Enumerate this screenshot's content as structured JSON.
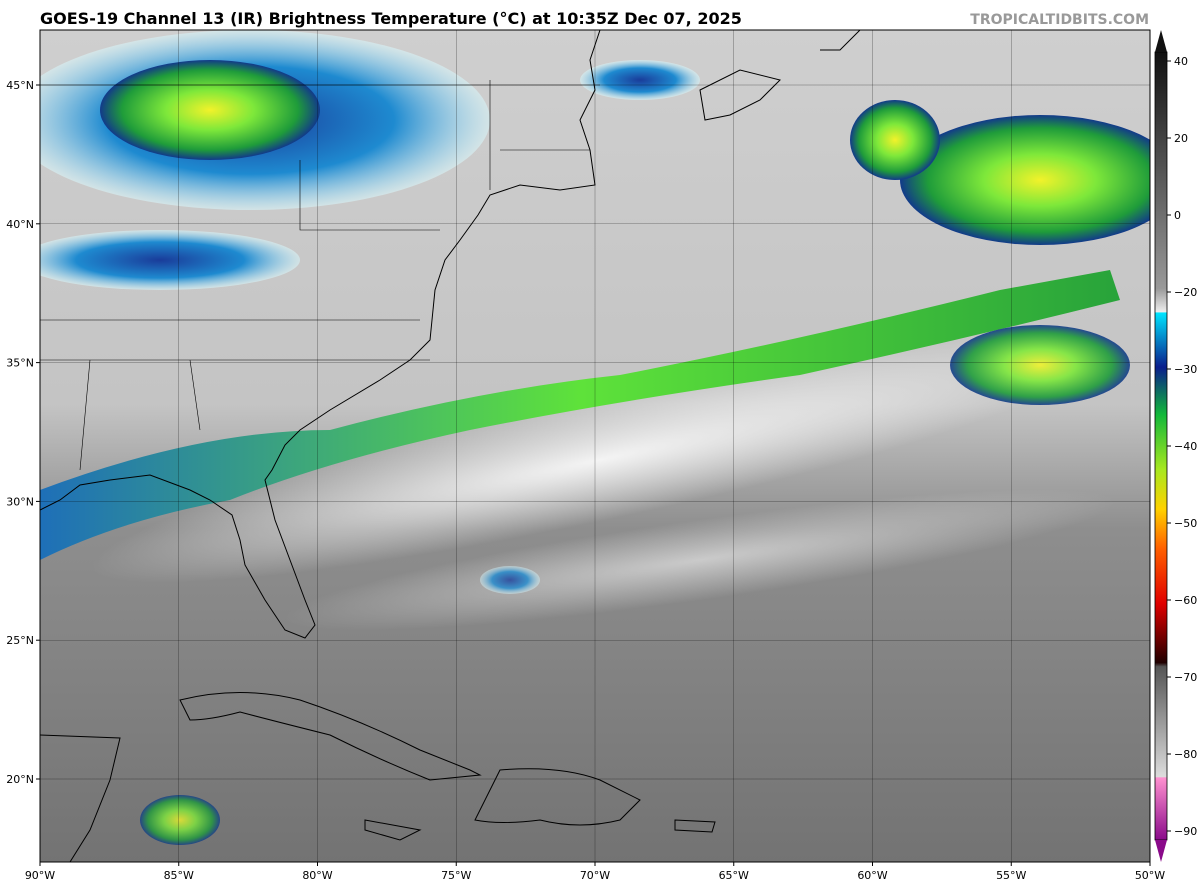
{
  "header": {
    "title": "GOES-19 Channel 13 (IR) Brightness Temperature (°C) at 10:35Z Dec 07, 2025",
    "credit": "TROPICALTIDBITS.COM"
  },
  "map": {
    "lat_labels": [
      "45°N",
      "40°N",
      "35°N",
      "30°N",
      "25°N",
      "20°N"
    ],
    "lon_labels": [
      "90°W",
      "85°W",
      "80°W",
      "75°W",
      "70°W",
      "65°W",
      "60°W",
      "55°W",
      "50°W"
    ]
  },
  "colorbar": {
    "ticks": [
      "40",
      "20",
      "0",
      "−20",
      "−30",
      "−40",
      "−50",
      "−60",
      "−70",
      "−80",
      "−90"
    ]
  }
}
